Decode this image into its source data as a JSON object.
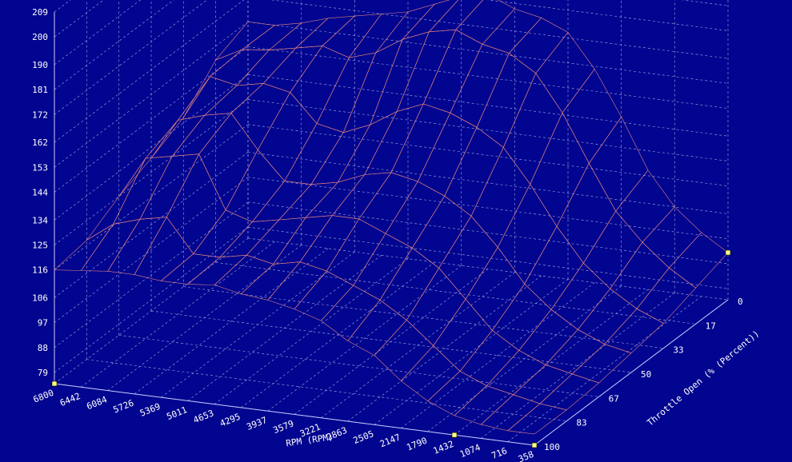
{
  "chart_data": {
    "type": "surface",
    "title": "",
    "xlabel": "RPM (RPM)",
    "ylabel": "Throttle Open (% (Percent))",
    "zlabel": "",
    "x_ticks": [
      "6800",
      "6442",
      "6084",
      "5726",
      "5369",
      "5011",
      "4653",
      "4295",
      "3937",
      "3579",
      "3221",
      "2863",
      "2505",
      "2147",
      "1790",
      "1432",
      "1074",
      "716",
      "358"
    ],
    "y_ticks": [
      "0",
      "17",
      "33",
      "50",
      "67",
      "83",
      "100"
    ],
    "z_ticks": [
      "79",
      "88",
      "97",
      "106",
      "116",
      "125",
      "134",
      "144",
      "153",
      "162",
      "172",
      "181",
      "190",
      "200",
      "209"
    ],
    "zlim": [
      75,
      209
    ],
    "grid": true,
    "rpm": [
      6800,
      6442,
      6084,
      5726,
      5369,
      5011,
      4653,
      4295,
      3937,
      3579,
      3221,
      2863,
      2505,
      2147,
      1790,
      1432,
      1074,
      716,
      358
    ],
    "throttle": [
      0,
      17,
      33,
      50,
      67,
      83,
      100
    ],
    "z": [
      [
        116,
        118,
        125,
        130,
        136,
        148,
        153
      ],
      [
        117,
        125,
        140,
        145,
        152,
        153,
        153
      ],
      [
        118,
        128,
        142,
        148,
        150,
        154,
        155
      ],
      [
        118,
        130,
        144,
        150,
        152,
        156,
        158
      ],
      [
        117,
        118,
        125,
        138,
        150,
        158,
        160
      ],
      [
        117,
        118,
        122,
        128,
        140,
        155,
        162
      ],
      [
        118,
        120,
        124,
        128,
        138,
        158,
        164
      ],
      [
        116,
        118,
        126,
        130,
        142,
        164,
        168
      ],
      [
        115,
        120,
        128,
        134,
        148,
        168,
        172
      ],
      [
        113,
        118,
        128,
        136,
        152,
        170,
        174
      ],
      [
        110,
        114,
        124,
        134,
        150,
        166,
        170
      ],
      [
        104,
        110,
        120,
        130,
        146,
        164,
        168
      ],
      [
        100,
        104,
        114,
        124,
        140,
        158,
        164
      ],
      [
        92,
        96,
        104,
        114,
        128,
        145,
        152
      ],
      [
        86,
        88,
        94,
        102,
        114,
        128,
        136
      ],
      [
        82,
        84,
        88,
        94,
        102,
        112,
        118
      ],
      [
        80,
        82,
        84,
        88,
        94,
        102,
        106
      ],
      [
        79,
        80,
        82,
        84,
        88,
        94,
        98
      ],
      [
        79,
        79,
        80,
        82,
        84,
        88,
        92
      ]
    ]
  }
}
